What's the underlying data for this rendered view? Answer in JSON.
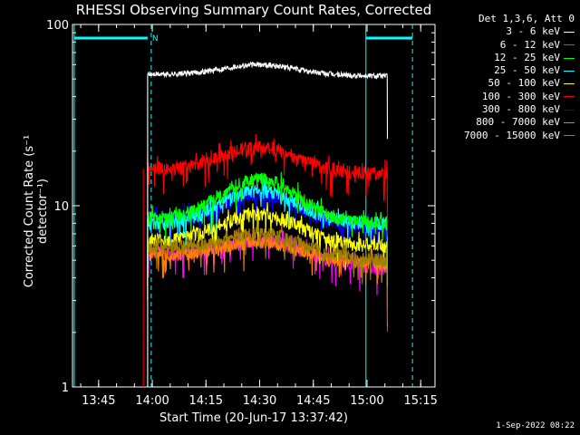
{
  "title": "RHESSI Observing Summary Count Rates, Corrected",
  "xlabel": "Start Time (20-Jun-17 13:37:42)",
  "ylabel": "Corrected Count Rate (s⁻¹ detector⁻¹)",
  "footer": "1-Sep-2022 08:22",
  "night_marker": "N",
  "legend": {
    "header": "Det 1,3,6, Att 0",
    "position": "top-right outside plot"
  },
  "chart_data": {
    "type": "line",
    "y_scale": "log",
    "ylim": [
      1,
      100
    ],
    "x_units": "time (minutes since start)",
    "xlim": [
      "13:37:42",
      "15:19:00"
    ],
    "x_tick_labels": [
      "13:45",
      "14:00",
      "14:15",
      "14:30",
      "14:45",
      "15:00",
      "15:15"
    ],
    "x_tick_minutes": [
      7.3,
      22.3,
      37.3,
      52.3,
      67.3,
      82.3,
      97.3
    ],
    "y_tick_labels": [
      "1",
      "10",
      "100"
    ],
    "y_tick_values": [
      1,
      10,
      100
    ],
    "data_start_minute": 21.0,
    "data_end_minute": 88.0,
    "series": [
      {
        "name": "3 - 6 keV",
        "color": "#ffffff",
        "start_value": 53,
        "peak_value": 60,
        "end_value": 52
      },
      {
        "name": "6 - 12 keV",
        "color": "#ff00ff",
        "start_value": 5.5,
        "peak_value": 6.5,
        "end_value": 4.5
      },
      {
        "name": "12 - 25 keV",
        "color": "#00ff00",
        "start_value": 8.5,
        "peak_value": 14,
        "end_value": 8
      },
      {
        "name": "25 - 50 keV",
        "color": "#00ffff",
        "start_value": 8,
        "peak_value": 12,
        "end_value": 8
      },
      {
        "name": "50 - 100 keV",
        "color": "#ffff00",
        "start_value": 6.5,
        "peak_value": 9,
        "end_value": 6
      },
      {
        "name": "100 - 300 keV",
        "color": "#ff0000",
        "start_value": 16,
        "peak_value": 21,
        "end_value": 15
      },
      {
        "name": "300 - 800 keV",
        "color": "#0000ff",
        "start_value": 8.5,
        "peak_value": 11.5,
        "end_value": 7.5
      },
      {
        "name": "800 - 7000 keV",
        "color": "#ff8000",
        "start_value": 5.5,
        "peak_value": 6.3,
        "end_value": 4.8
      },
      {
        "name": "7000 - 15000 keV",
        "color": "#a08000",
        "start_value": 6,
        "peak_value": 7,
        "end_value": 5
      }
    ],
    "solar_vertical_lines_minutes": [
      0.5,
      82.0
    ],
    "dashed_vertical_lines_minutes": [
      22.0,
      95.0
    ],
    "top_bar_segments_minutes": [
      [
        0.5,
        21.0
      ],
      [
        82.0,
        95.0
      ]
    ]
  }
}
